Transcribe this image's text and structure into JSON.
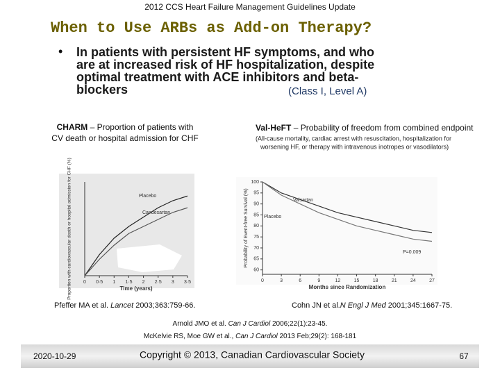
{
  "header": "2012 CCS Heart Failure Management Guidelines Update",
  "title": "When to Use ARBs as Add-on Therapy?",
  "bullet": {
    "lines": [
      "In patients with persistent HF symptoms, and who",
      "are at increased risk of HF hospitalization, despite",
      "optimal treatment with ACE inhibitors and beta-",
      "blockers"
    ],
    "class": "(Class I, Level A)"
  },
  "captions": {
    "left": {
      "name": "CHARM",
      "lines": [
        " – Proportion of patients with",
        "CV death or hospital admission for CHF"
      ]
    },
    "right": {
      "name": "Val-HeFT",
      "text": " – Probability of freedom from combined endpoint",
      "note": [
        "(All-cause mortality, cardiac arrest with resuscitation, hospitalization for",
        "worsening HF, or therapy with intravenous inotropes or vasodilators)"
      ]
    }
  },
  "chart_data": [
    {
      "type": "line",
      "y_label": "Proportion with cardiovascular death or hospital admission for CHF (%)",
      "x_label": "Time (years)",
      "x": [
        0,
        0.5,
        1,
        1.5,
        2,
        2.5,
        3,
        3.5
      ],
      "xticks": [
        0,
        {
          "value": 0.5,
          "label": "0·5"
        },
        1,
        {
          "value": 1.5,
          "label": "1·5"
        },
        2,
        {
          "value": 2.5,
          "label": "2·5"
        },
        3,
        {
          "value": 3.5,
          "label": "3·5"
        }
      ],
      "xlim": [
        0,
        3.5
      ],
      "ylim": [
        0,
        40
      ],
      "series": [
        {
          "name": "Placebo",
          "color": "#222222",
          "values": [
            0,
            9,
            16,
            21,
            25,
            29,
            32,
            34
          ]
        },
        {
          "name": "Candesartan",
          "color": "#555555",
          "values": [
            0,
            7,
            13,
            18,
            21,
            24,
            27,
            29
          ]
        }
      ]
    },
    {
      "type": "line",
      "y_label": "Probability of Event-free Survival (%)",
      "x_label": "Months since Randomization",
      "x": [
        0,
        3,
        6,
        9,
        12,
        15,
        18,
        21,
        24,
        27
      ],
      "xticks": [
        0,
        3,
        6,
        9,
        12,
        15,
        18,
        21,
        24,
        27
      ],
      "xlim": [
        0,
        27
      ],
      "ylim": [
        58,
        100
      ],
      "yticks": [
        60,
        65,
        70,
        75,
        80,
        85,
        90,
        95,
        100
      ],
      "annotation": "P=0.009",
      "series": [
        {
          "name": "Valsartan",
          "color": "#333333",
          "values": [
            100,
            95,
            92,
            89,
            86,
            84,
            82,
            80,
            78,
            77
          ]
        },
        {
          "name": "Placebo",
          "color": "#777777",
          "values": [
            100,
            94,
            90,
            86,
            83,
            80,
            78,
            76,
            74,
            73
          ]
        }
      ]
    }
  ],
  "refs": {
    "left": [
      "Pfeffer MA et al. ",
      "Lancet",
      " 2003;363:759-66."
    ],
    "right": [
      "Cohn JN et al.",
      "N Engl J Med",
      " 2001;345:1667-75."
    ],
    "extra": [
      [
        "Arnold JMO et al. ",
        "Can J Cardiol",
        " 2006;22(1):23-45."
      ],
      [
        "McKelvie RS, Moe GW et al., ",
        "Can J Cardiol",
        " 2013 Feb;29(2): 168-181"
      ]
    ]
  },
  "footer": {
    "date": "2020-10-29",
    "copyright": "Copyright © 2013, Canadian Cardiovascular Society",
    "page": "67"
  }
}
